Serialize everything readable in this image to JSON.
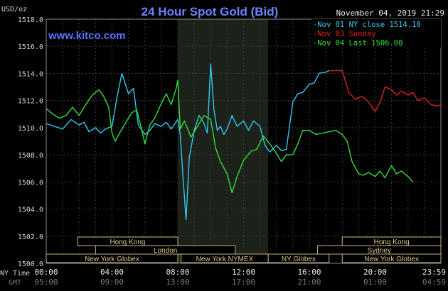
{
  "chart_data": {
    "type": "line",
    "title": "24 Hour Spot Gold (Bid)",
    "watermark": "www.kitco.com",
    "timestamp": "November 04, 2019 21:29",
    "ylabel": "USD/oz",
    "ylim": [
      1500,
      1518
    ],
    "yticks": [
      "1518.0",
      "1516.0",
      "1514.0",
      "1512.0",
      "1510.0",
      "1508.0",
      "1506.0",
      "1504.0",
      "1502.0",
      "1500.0"
    ],
    "x_ny_label": "NY Time",
    "x_gmt_label": "GMT",
    "xticks_ny": [
      "00:00",
      "04:00",
      "08:00",
      "12:00",
      "16:00",
      "20:00",
      "23:59"
    ],
    "xticks_gmt": [
      "05:00",
      "09:00",
      "13:00",
      "17:00",
      "21:00",
      "01:00",
      "04:59"
    ],
    "grid": true,
    "legend": [
      {
        "text": "Nov 01 NY close 1514.10",
        "color": "#33c9f0"
      },
      {
        "text": "Nov 03 Sunday",
        "color": "#e02020"
      },
      {
        "text": "Nov 04 Last 1506.00",
        "color": "#33e03a"
      }
    ],
    "sessions": [
      {
        "name": "Hong Kong",
        "start": 1.9,
        "end": 8.0,
        "row": 0
      },
      {
        "name": "Hong Kong",
        "start": 18.0,
        "end": 24.0,
        "row": 0
      },
      {
        "name": "London",
        "start": 3.0,
        "end": 11.5,
        "row": 1
      },
      {
        "name": "Sydney",
        "start": 16.5,
        "end": 24.0,
        "row": 1
      },
      {
        "name": "New York Globex",
        "start": 0.0,
        "end": 8.0,
        "row": 2
      },
      {
        "name": "New York NYMEX",
        "start": 8.2,
        "end": 13.5,
        "row": 2
      },
      {
        "name": "NY Globex",
        "start": 13.5,
        "end": 17.2,
        "row": 2
      },
      {
        "name": "New York Globex",
        "start": 18.0,
        "end": 24.0,
        "row": 2
      }
    ],
    "highlight_range": [
      8.0,
      13.5
    ],
    "series": [
      {
        "name": "Nov 01 NY close 1514.10",
        "color": "#33c9f0",
        "x": [
          0,
          0.5,
          1,
          1.5,
          2,
          2.3,
          2.6,
          3,
          3.3,
          3.6,
          4,
          4.3,
          4.6,
          5,
          5.3,
          5.6,
          6,
          6.3,
          6.6,
          7,
          7.3,
          7.6,
          8,
          8.15,
          8.3,
          8.5,
          8.7,
          9,
          9.3,
          9.6,
          9.8,
          10,
          10.2,
          10.4,
          10.6,
          10.8,
          11,
          11.3,
          11.6,
          12,
          12.3,
          12.6,
          13,
          13.3,
          13.6,
          14,
          14.3,
          14.6,
          15,
          15.3,
          15.6,
          16,
          16.3,
          16.6,
          17,
          17.2
        ],
        "y": [
          1510.3,
          1510.1,
          1509.9,
          1510.6,
          1510.2,
          1510.4,
          1509.7,
          1510.0,
          1509.6,
          1509.9,
          1510.1,
          1512.2,
          1514.0,
          1512.5,
          1512.9,
          1510.2,
          1509.5,
          1509.8,
          1510.3,
          1510.1,
          1510.4,
          1509.9,
          1510.6,
          1509.5,
          1506.7,
          1503.2,
          1507.8,
          1509.8,
          1510.9,
          1510.3,
          1509.6,
          1514.7,
          1511.3,
          1509.8,
          1510.1,
          1509.5,
          1509.9,
          1510.9,
          1510.1,
          1510.5,
          1509.8,
          1510.5,
          1510.1,
          1508.7,
          1508.2,
          1508.7,
          1508.3,
          1508.4,
          1511.9,
          1512.5,
          1512.6,
          1513.2,
          1513.3,
          1514.0,
          1514.1,
          1514.2
        ]
      },
      {
        "name": "Nov 03 Sunday",
        "color": "#e02020",
        "x": [
          17.2,
          17.5,
          18.0,
          18.4,
          18.8,
          19.2,
          19.6,
          20.0,
          20.3,
          20.6,
          21.0,
          21.3,
          21.6,
          22.0,
          22.3,
          22.6,
          23.0,
          23.4,
          23.8,
          24.0
        ],
        "y": [
          1514.2,
          1514.2,
          1514.2,
          1512.6,
          1512.1,
          1512.3,
          1511.9,
          1511.2,
          1511.9,
          1513.0,
          1512.8,
          1512.4,
          1512.7,
          1512.4,
          1512.6,
          1512.0,
          1512.2,
          1511.7,
          1511.6,
          1511.7
        ]
      },
      {
        "name": "Nov 04 Last 1506.00",
        "color": "#33e03a",
        "x": [
          0,
          0.4,
          0.8,
          1.2,
          1.6,
          2,
          2.4,
          2.8,
          3.2,
          3.5,
          3.8,
          4,
          4.2,
          4.5,
          4.8,
          5.2,
          5.5,
          5.8,
          6,
          6.3,
          6.6,
          7,
          7.3,
          7.6,
          7.9,
          8,
          8.15,
          8.4,
          8.8,
          9.2,
          9.6,
          10,
          10.3,
          10.6,
          11,
          11.3,
          11.6,
          12,
          12.2,
          12.5,
          12.8,
          13.2,
          13.6,
          14,
          14.3,
          14.6,
          15,
          15.3,
          15.6,
          16,
          16.4,
          16.8,
          17.2,
          17.6,
          18,
          18.3,
          18.6,
          19,
          19.3,
          19.6,
          20,
          20.3,
          20.6,
          21,
          21.3,
          21.6,
          22,
          22.3
        ],
        "y": [
          1511.4,
          1511.0,
          1510.7,
          1510.9,
          1511.5,
          1510.9,
          1511.7,
          1512.4,
          1512.8,
          1512.3,
          1511.5,
          1509.6,
          1509.0,
          1509.7,
          1510.3,
          1511.1,
          1511.3,
          1509.9,
          1508.8,
          1510.2,
          1510.7,
          1511.8,
          1512.5,
          1511.7,
          1512.9,
          1513.5,
          1509.9,
          1510.5,
          1509.3,
          1510.1,
          1510.9,
          1510.6,
          1508.5,
          1507.5,
          1506.6,
          1505.2,
          1506.4,
          1507.6,
          1507.9,
          1508.3,
          1508.4,
          1509.4,
          1508.8,
          1508.1,
          1507.5,
          1508.0,
          1508.0,
          1508.8,
          1509.8,
          1509.8,
          1509.5,
          1509.6,
          1509.7,
          1509.8,
          1509.5,
          1509.0,
          1507.5,
          1506.6,
          1506.5,
          1506.7,
          1506.4,
          1506.8,
          1506.3,
          1507.2,
          1506.6,
          1506.8,
          1506.4,
          1506.0
        ]
      }
    ]
  }
}
